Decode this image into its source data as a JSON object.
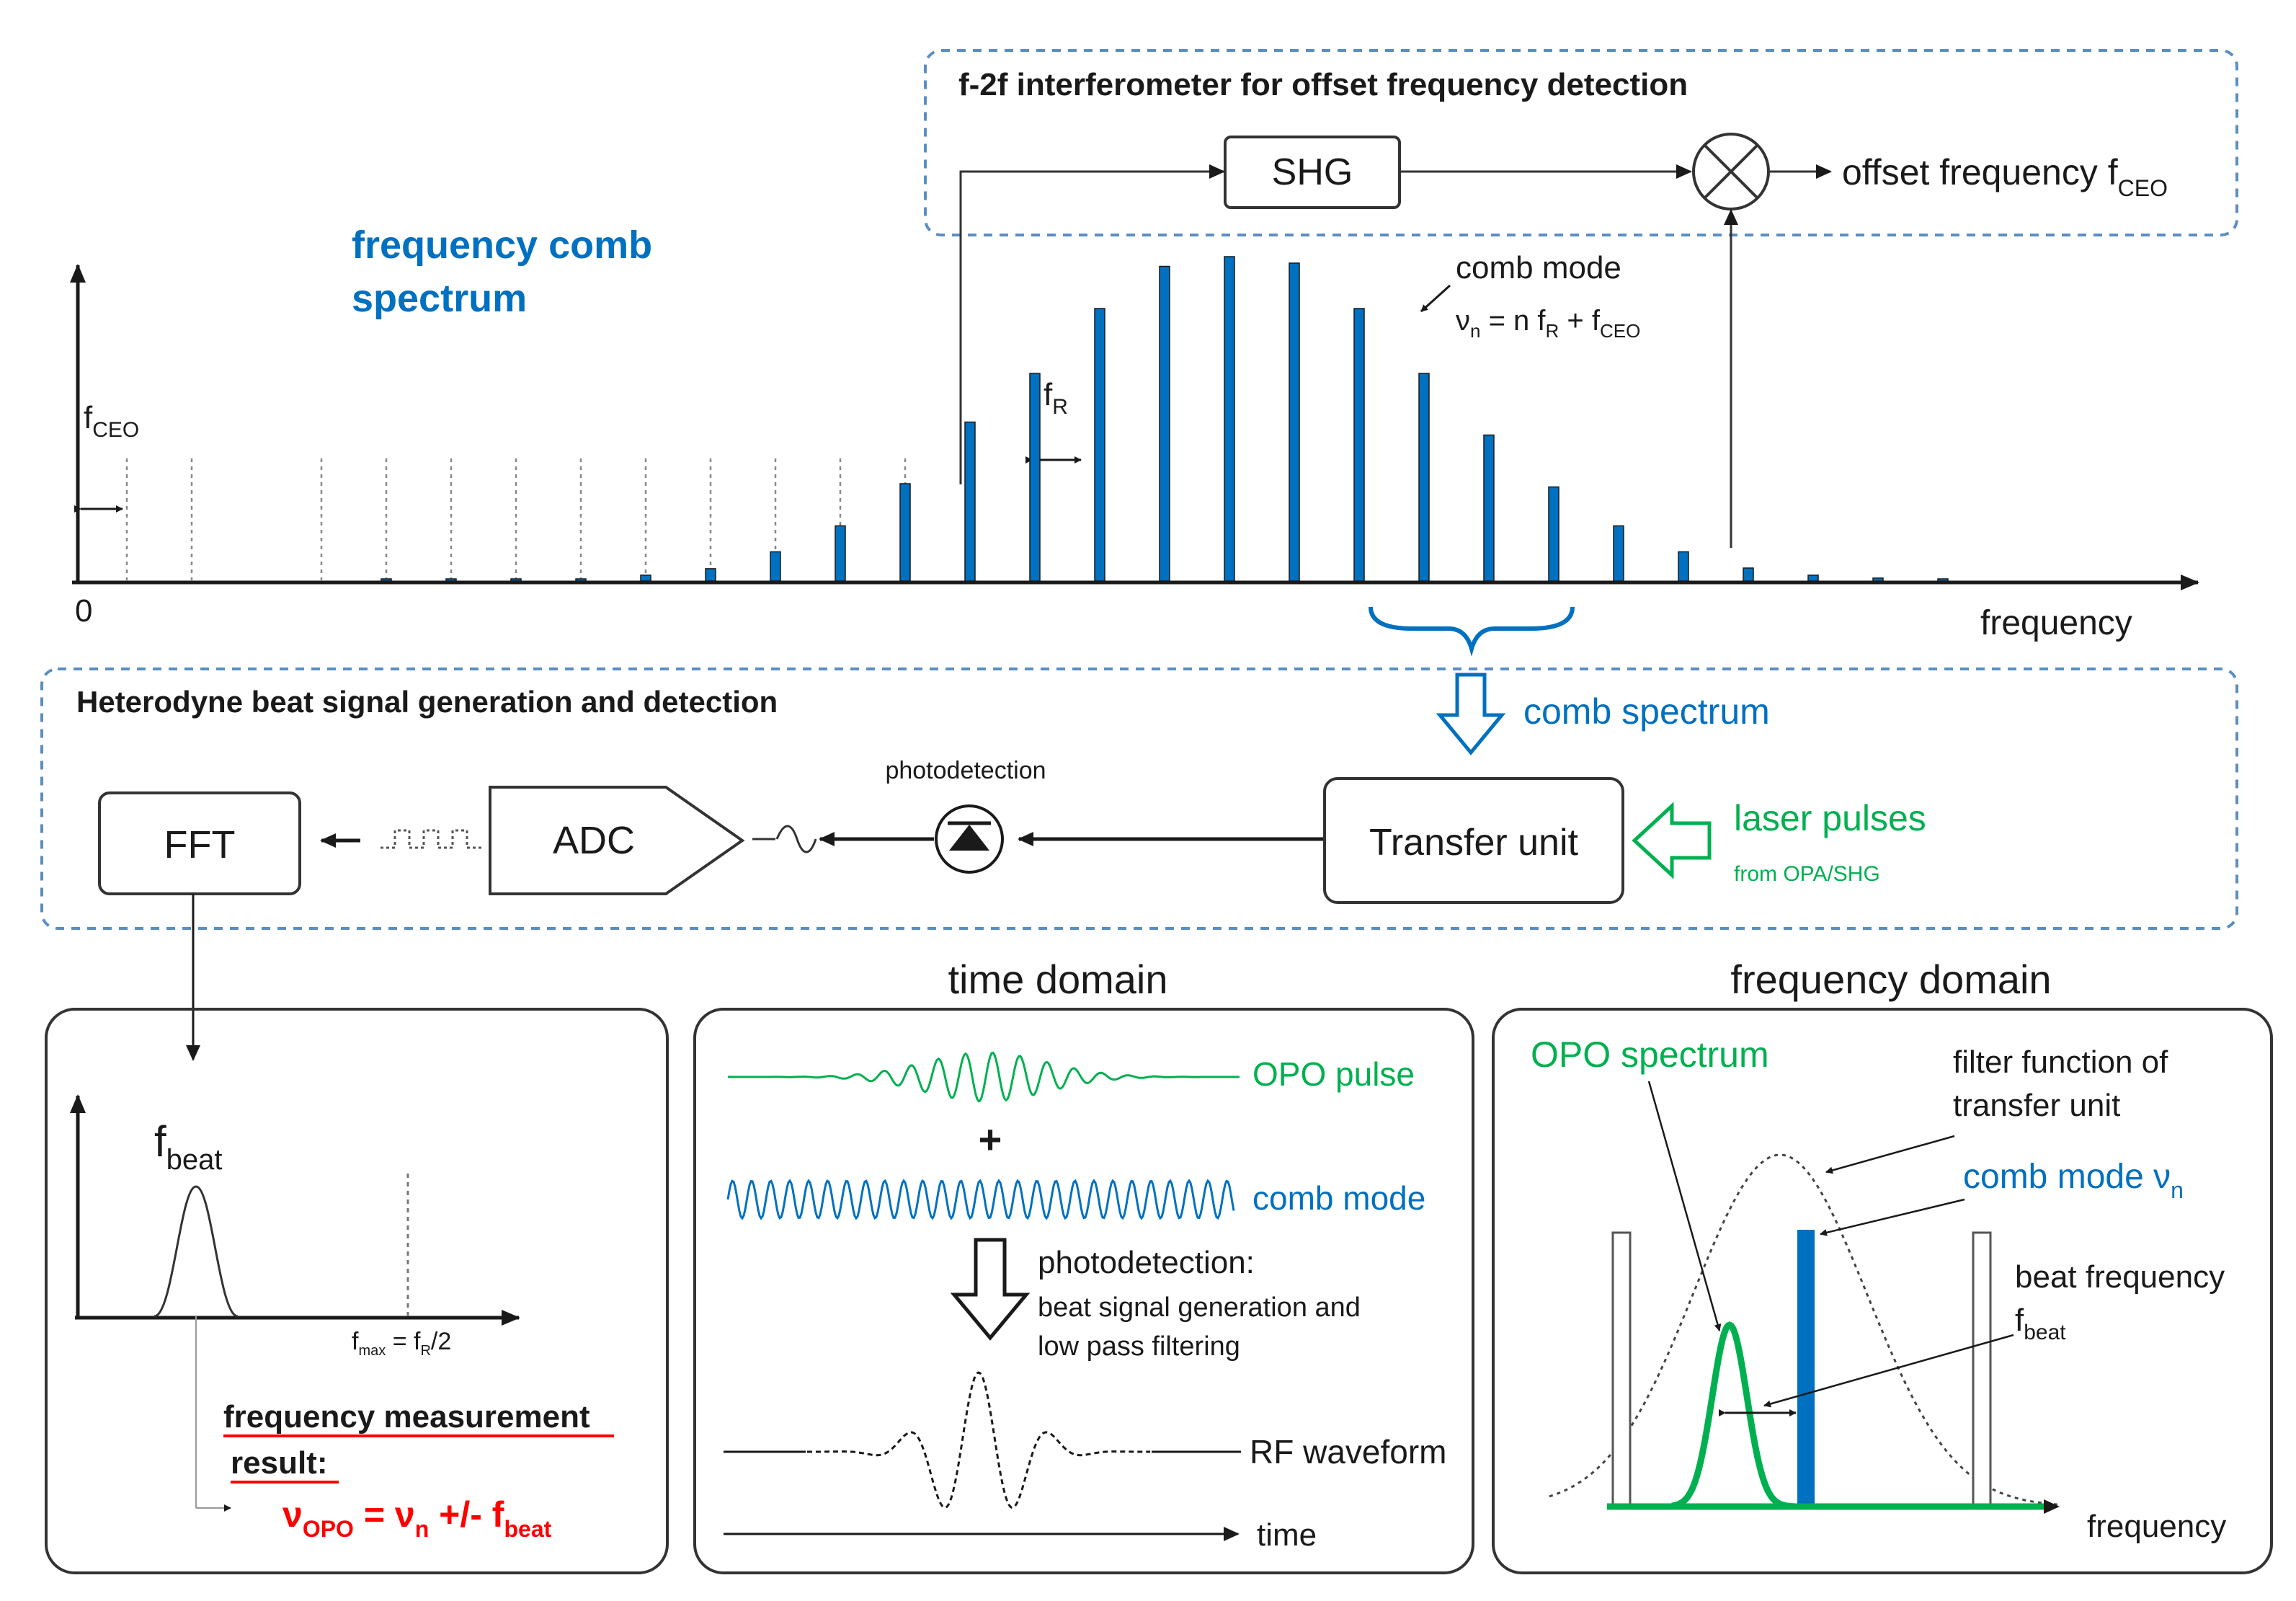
{
  "colors": {
    "comb_blue": "#0070c0",
    "opo_green": "#00b050",
    "result_red": "#ff0000",
    "box_dash": "#5b8ec2",
    "ink": "#1a1a1a"
  },
  "f2f": {
    "title": "f-2f interferometer for offset frequency detection",
    "shg": "SHG",
    "mixer_icon": "mixer-cross-circle-icon",
    "offset_label": "offset frequency f",
    "offset_sub": "CEO"
  },
  "spectrum": {
    "title_line1": "frequency comb",
    "title_line2": "spectrum",
    "zero": "0",
    "x_label": "frequency",
    "fceo_main": "f",
    "fceo_sub": "CEO",
    "fr_main": "f",
    "fr_sub": "R",
    "comb_mode_label": "comb mode",
    "formula_v": "ν",
    "formula_n": "n",
    "formula_mid": " = n f",
    "formula_r": "R",
    "formula_plus": " + f",
    "formula_ceo": "CEO",
    "brace_label": "comb spectrum",
    "comb_amplitudes": [
      0.003,
      0.003,
      0.003,
      0.003,
      0.003,
      0.003,
      0.003,
      0.006,
      0.018,
      0.038,
      0.09,
      0.17,
      0.3,
      0.49,
      0.64,
      0.84,
      0.97,
      1.0,
      0.98,
      0.84,
      0.64,
      0.45,
      0.29,
      0.17,
      0.09,
      0.04,
      0.018,
      0.009,
      0.003
    ]
  },
  "heterodyne": {
    "title": "Heterodyne beat signal generation and detection",
    "fft": "FFT",
    "adc": "ADC",
    "photodetection": "photodetection",
    "transfer": "Transfer unit",
    "laser_line1": "laser pulses",
    "laser_line2": "from OPA/SHG",
    "photodiode_icon": "photodiode-icon",
    "square_wave_icon": "square-wave-icon",
    "sine_icon": "sine-wave-icon"
  },
  "fft_panel": {
    "fbeat_main": "f",
    "fbeat_sub": "beat",
    "fmax_main": "f",
    "fmax_sub": "max",
    "fmax_eq": " = f",
    "fmax_r": "R",
    "fmax_tail": "/2",
    "result_line1": "frequency measurement",
    "result_line2": "result:",
    "res_v": "ν",
    "res_opo": "OPO",
    "res_eq": " = ν",
    "res_n": "n",
    "res_pm": " +/- f",
    "res_beat": "beat"
  },
  "time_domain": {
    "title": "time domain",
    "opo_pulse": "OPO pulse",
    "plus": "+",
    "comb_mode": "comb mode",
    "pd_title": "photodetection:",
    "pd_line1": "beat signal generation and",
    "pd_line2": "low pass filtering",
    "rf": "RF waveform",
    "time": "time"
  },
  "freq_domain": {
    "title": "frequency domain",
    "opo_spectrum": "OPO spectrum",
    "filter_line1": "filter function of",
    "filter_line2": "transfer unit",
    "comb_mode_main": "comb mode ν",
    "comb_mode_sub": "n",
    "beat_line1": "beat frequency",
    "beat_main": "f",
    "beat_sub": "beat",
    "x_label": "frequency"
  }
}
